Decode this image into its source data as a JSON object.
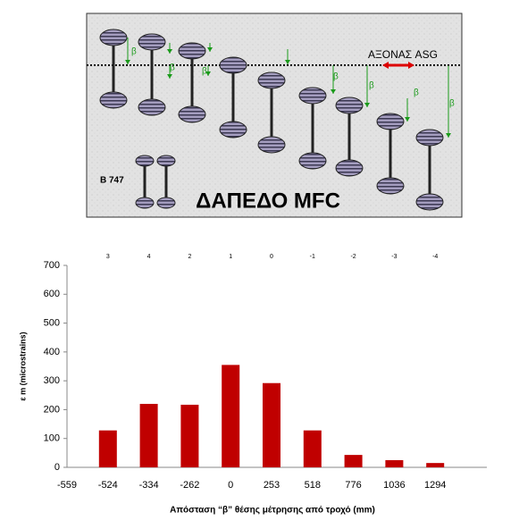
{
  "diagram": {
    "axis_label": "ΑΞΟΝΑΣ ASG",
    "aircraft": "Β 747",
    "floor": "ΔΑΠΕΔΟ MFC",
    "markers": [
      "β",
      "β",
      "β",
      "β",
      "β",
      "β",
      "β"
    ]
  },
  "chart_data": {
    "type": "bar",
    "categories": [
      "-559",
      "-524",
      "-334",
      "-262",
      "0",
      "253",
      "518",
      "776",
      "1036",
      "1294"
    ],
    "top_categories": [
      null,
      "3",
      "4",
      "2",
      "1",
      "0",
      "-1",
      "-2",
      "-3",
      "-4"
    ],
    "values": [
      null,
      128,
      220,
      217,
      355,
      292,
      128,
      43,
      25,
      15
    ],
    "color": "#c00000",
    "xlabel": "Απόσταση “β” θέσης μέτρησης από τροχό (mm)",
    "ylabel": "ε m (microstrains)",
    "ylim": [
      0,
      700
    ],
    "yticks": [
      0,
      100,
      200,
      300,
      400,
      500,
      600,
      700
    ]
  }
}
